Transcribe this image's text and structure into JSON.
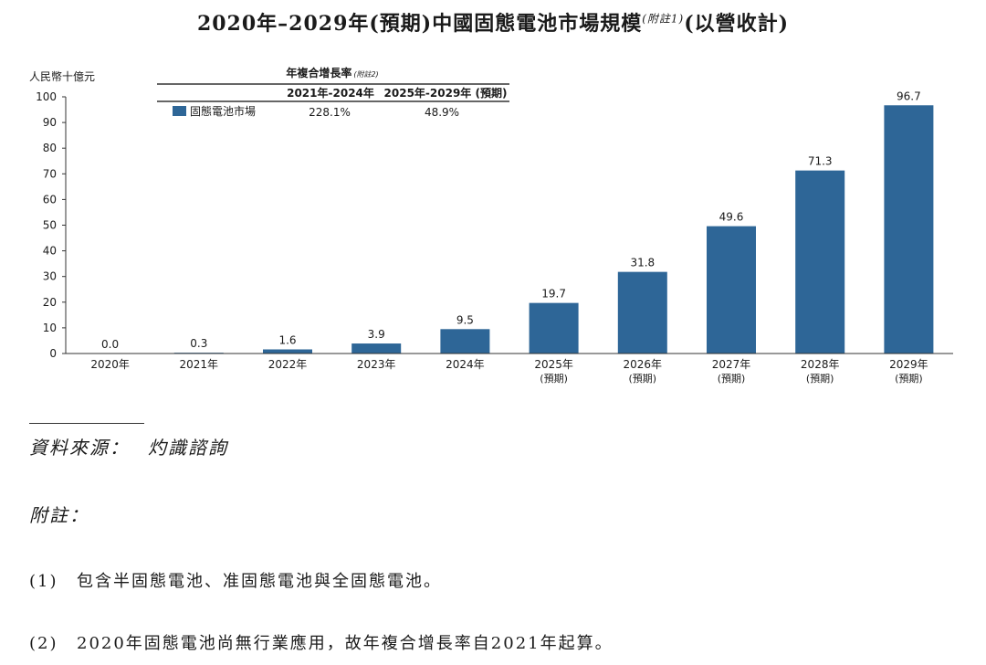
{
  "title": {
    "main": "2020年–2029年(預期)中國固態電池市場規模",
    "note_ref": "(附註1)",
    "suffix": "(以營收計)"
  },
  "colors": {
    "bar": "#2e6697",
    "axis": "#333333",
    "text": "#1a1a1a"
  },
  "cagr_table": {
    "header": "年複合增長率",
    "header_note": "(附註2)",
    "col1": "2021年-2024年",
    "col2": "2025年-2029年 (預期)",
    "row_label": "固態電池市場",
    "row_val1": "228.1%",
    "row_val2": "48.9%"
  },
  "chart_data": {
    "type": "bar",
    "ylabel": "人民幣十億元",
    "ylim": [
      0,
      100
    ],
    "yticks": [
      0,
      10,
      20,
      30,
      40,
      50,
      60,
      70,
      80,
      90,
      100
    ],
    "categories": [
      "2020年",
      "2021年",
      "2022年",
      "2023年",
      "2024年",
      "2025年",
      "2026年",
      "2027年",
      "2028年",
      "2029年"
    ],
    "category_sublabels": [
      "",
      "",
      "",
      "",
      "",
      "(預期)",
      "(預期)",
      "(預期)",
      "(預期)",
      "(預期)"
    ],
    "values": [
      0.0,
      0.3,
      1.6,
      3.9,
      9.5,
      19.7,
      31.8,
      49.6,
      71.3,
      96.7
    ],
    "value_labels": [
      "0.0",
      "0.3",
      "1.6",
      "3.9",
      "9.5",
      "19.7",
      "31.8",
      "49.6",
      "71.3",
      "96.7"
    ],
    "legend": "固態電池市場",
    "grid": false
  },
  "footer": {
    "source_label": "資料來源：",
    "source_value": "灼識諮詢",
    "notes_heading": "附註：",
    "notes": [
      {
        "num": "(1)",
        "text": "包含半固態電池、准固態電池與全固態電池。"
      },
      {
        "num": "(2)",
        "text": "2020年固態電池尚無行業應用，故年複合增長率自2021年起算。"
      }
    ]
  }
}
